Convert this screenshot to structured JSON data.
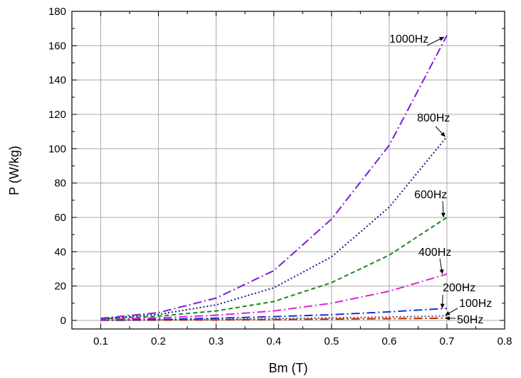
{
  "chart_data": {
    "type": "line",
    "xlabel": "Bm (T)",
    "ylabel": "P (W/kg)",
    "xlim": [
      0.05,
      0.8
    ],
    "ylim": [
      -5,
      180
    ],
    "x_ticks": [
      0.1,
      0.2,
      0.3,
      0.4,
      0.5,
      0.6,
      0.7,
      0.8
    ],
    "x_tick_labels": [
      "0.1",
      "0.2",
      "0.3",
      "0.4",
      "0.5",
      "0.6",
      "0.7",
      "0.8"
    ],
    "y_ticks": [
      0,
      20,
      40,
      60,
      80,
      100,
      120,
      140,
      160,
      180
    ],
    "y_tick_labels": [
      "0",
      "20",
      "40",
      "60",
      "80",
      "100",
      "120",
      "140",
      "160",
      "180"
    ],
    "grid": true,
    "x": [
      0.1,
      0.2,
      0.3,
      0.4,
      0.5,
      0.6,
      0.7
    ],
    "series": [
      {
        "name": "50Hz",
        "color": "#cc2200",
        "dash": "dashdot",
        "values": [
          0.05,
          0.15,
          0.3,
          0.5,
          0.75,
          1.0,
          1.3
        ]
      },
      {
        "name": "100Hz",
        "color": "#555555",
        "dash": "dotted",
        "values": [
          0.1,
          0.3,
          0.6,
          1.0,
          1.5,
          2.0,
          2.6
        ]
      },
      {
        "name": "200Hz",
        "color": "#1a2fcf",
        "dash": "dashdot",
        "values": [
          0.2,
          0.6,
          1.3,
          2.2,
          3.3,
          5.0,
          7.0
        ]
      },
      {
        "name": "400Hz",
        "color": "#e020d0",
        "dash": "dashdot",
        "values": [
          0.5,
          1.5,
          3.0,
          5.5,
          10.0,
          17.0,
          27.0
        ]
      },
      {
        "name": "600Hz",
        "color": "#178a17",
        "dash": "dashed",
        "values": [
          0.8,
          2.5,
          5.5,
          11.0,
          22.0,
          38.0,
          60.0
        ]
      },
      {
        "name": "800Hz",
        "color": "#141a8c",
        "dash": "dotted",
        "values": [
          1.0,
          3.5,
          9.0,
          19.0,
          37.0,
          66.0,
          107.0
        ]
      },
      {
        "name": "1000Hz",
        "color": "#7a1fd8",
        "dash": "dashdot",
        "values": [
          1.2,
          4.5,
          13.0,
          29.0,
          59.0,
          102.0,
          166.0
        ]
      }
    ],
    "annotations": [
      "1000Hz",
      "800Hz",
      "600Hz",
      "400Hz",
      "200Hz",
      "100Hz",
      "50Hz"
    ]
  }
}
